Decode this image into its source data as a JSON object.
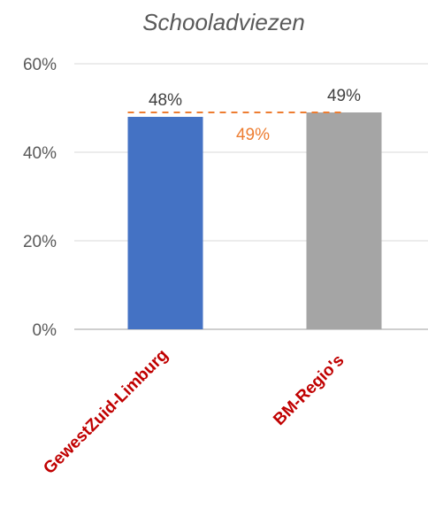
{
  "chart_data": {
    "type": "bar",
    "title": "Schooladviezen",
    "categories": [
      "GewestZuid-Limburg",
      "BM-Regio's"
    ],
    "values": [
      0.48,
      0.49
    ],
    "value_labels": [
      "48%",
      "49%"
    ],
    "bar_colors": [
      "#4472c4",
      "#a5a5a5"
    ],
    "ylim": [
      0,
      0.6
    ],
    "yticks": [
      0,
      0.2,
      0.4,
      0.6
    ],
    "ytick_labels": [
      "0%",
      "20%",
      "40%",
      "60%"
    ],
    "reference_line": {
      "value": 0.49,
      "label": "49%",
      "color": "#ed7d31",
      "style": "dashed"
    },
    "category_label_color": "#c00000",
    "grid": true,
    "legend": "none"
  }
}
